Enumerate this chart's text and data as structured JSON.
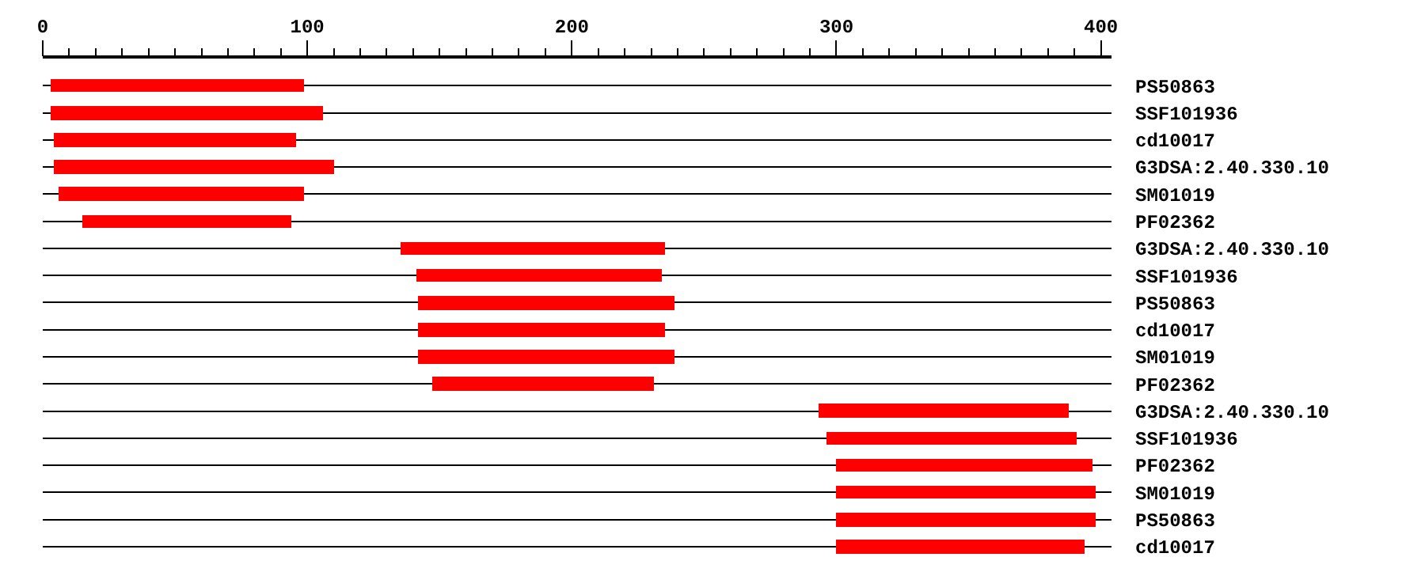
{
  "chart_data": {
    "type": "bar",
    "orientation": "horizontal",
    "categories": [
      "PS50863",
      "SSF101936",
      "cd10017",
      "G3DSA:2.40.330.10",
      "SM01019",
      "PF02362",
      "G3DSA:2.40.330.10",
      "SSF101936",
      "PS50863",
      "cd10017",
      "SM01019",
      "PF02362",
      "G3DSA:2.40.330.10",
      "SSF101936",
      "PF02362",
      "SM01019",
      "PS50863",
      "cd10017"
    ],
    "base": [
      3,
      3,
      4,
      4,
      6,
      15,
      135,
      141,
      142,
      142,
      142,
      147,
      293,
      296,
      300,
      300,
      300,
      300
    ],
    "values": [
      96,
      103,
      92,
      106,
      93,
      79,
      100,
      93,
      97,
      93,
      97,
      84,
      95,
      95,
      97,
      98,
      98,
      94
    ],
    "color": "#ff0000",
    "xlim": [
      0,
      404
    ],
    "xticks": [
      0,
      {
        "value": 10,
        "label": null
      },
      {
        "value": 20,
        "label": null
      },
      {
        "value": 30,
        "label": null
      },
      {
        "value": 40,
        "label": null
      },
      {
        "value": 50,
        "label": null
      },
      {
        "value": 60,
        "label": null
      },
      {
        "value": 70,
        "label": null
      },
      {
        "value": 80,
        "label": null
      },
      {
        "value": 90,
        "label": null
      },
      100,
      {
        "value": 110,
        "label": null
      },
      {
        "value": 120,
        "label": null
      },
      {
        "value": 130,
        "label": null
      },
      {
        "value": 140,
        "label": null
      },
      {
        "value": 150,
        "label": null
      },
      {
        "value": 160,
        "label": null
      },
      {
        "value": 170,
        "label": null
      },
      {
        "value": 180,
        "label": null
      },
      {
        "value": 190,
        "label": null
      },
      200,
      {
        "value": 210,
        "label": null
      },
      {
        "value": 220,
        "label": null
      },
      {
        "value": 230,
        "label": null
      },
      {
        "value": 240,
        "label": null
      },
      {
        "value": 250,
        "label": null
      },
      {
        "value": 260,
        "label": null
      },
      {
        "value": 270,
        "label": null
      },
      {
        "value": 280,
        "label": null
      },
      {
        "value": 290,
        "label": null
      },
      300,
      {
        "value": 310,
        "label": null
      },
      {
        "value": 320,
        "label": null
      },
      {
        "value": 330,
        "label": null
      },
      {
        "value": 340,
        "label": null
      },
      {
        "value": 350,
        "label": null
      },
      {
        "value": 360,
        "label": null
      },
      {
        "value": 370,
        "label": null
      },
      {
        "value": 380,
        "label": null
      },
      {
        "value": 390,
        "label": null
      },
      400
    ],
    "grid": "y"
  }
}
